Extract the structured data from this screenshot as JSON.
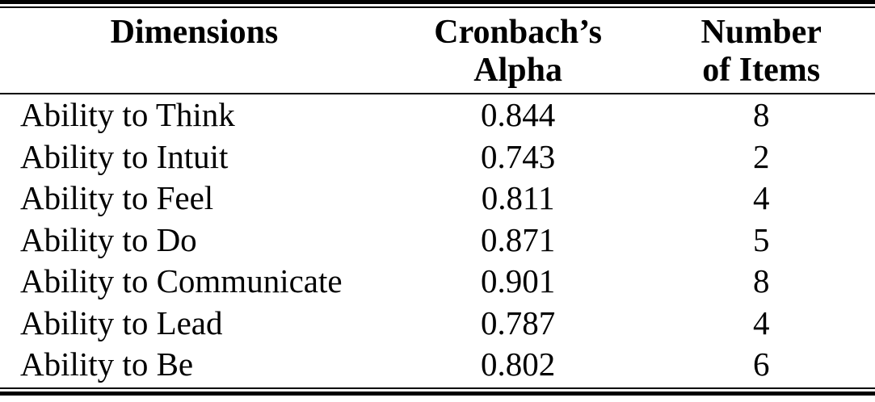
{
  "table": {
    "columns": [
      {
        "label": "Dimensions",
        "lines": [
          "Dimensions"
        ]
      },
      {
        "label": "Cronbach’s Alpha",
        "lines": [
          "Cronbach’s",
          "Alpha"
        ]
      },
      {
        "label": "Number of Items",
        "lines": [
          "Number",
          "of Items"
        ]
      }
    ],
    "rows": [
      {
        "dimension": "Ability to Think",
        "alpha": "0.844",
        "items": "8"
      },
      {
        "dimension": "Ability to Intuit",
        "alpha": "0.743",
        "items": "2"
      },
      {
        "dimension": "Ability to Feel",
        "alpha": "0.811",
        "items": "4"
      },
      {
        "dimension": "Ability to Do",
        "alpha": "0.871",
        "items": "5"
      },
      {
        "dimension": "Ability to Communicate",
        "alpha": "0.901",
        "items": "8"
      },
      {
        "dimension": "Ability to Lead",
        "alpha": "0.787",
        "items": "4"
      },
      {
        "dimension": "Ability to Be",
        "alpha": "0.802",
        "items": "6"
      }
    ]
  },
  "colors": {
    "text": "#000000",
    "background": "#ffffff",
    "rule": "#000000"
  }
}
